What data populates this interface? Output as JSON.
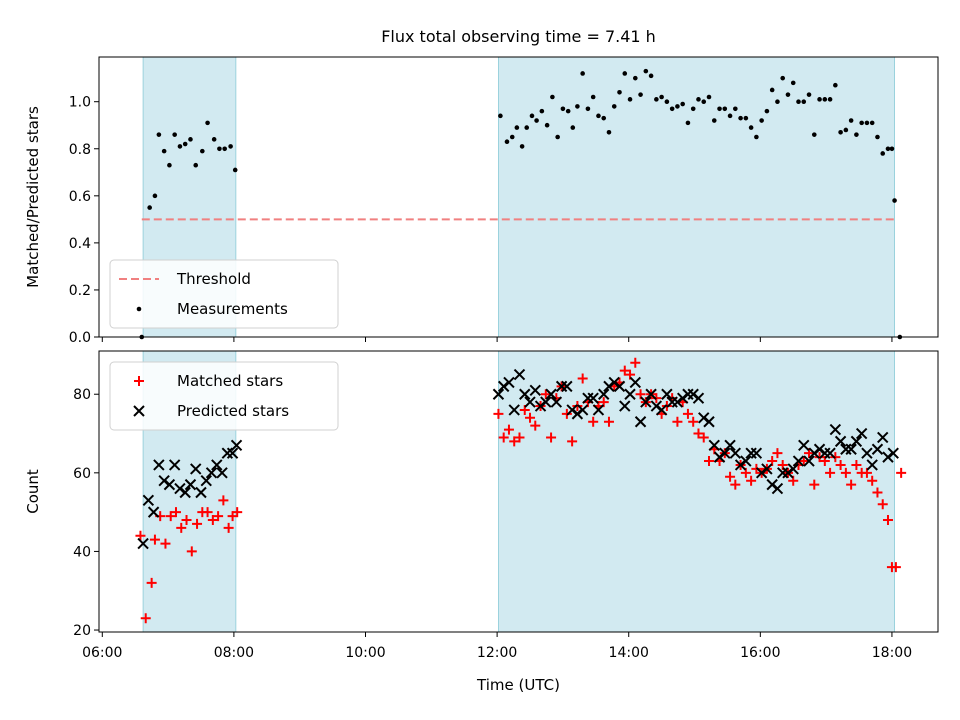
{
  "chart_data": {
    "type": "scatter",
    "title": "Flux total observing time = 7.41 h",
    "xlabel": "Time (UTC)",
    "x_unit": "hours UTC",
    "x_ticks": [
      6,
      8,
      10,
      12,
      14,
      16,
      18
    ],
    "x_tick_labels": [
      "06:00",
      "08:00",
      "10:00",
      "12:00",
      "14:00",
      "16:00",
      "18:00"
    ],
    "xlim": [
      5.95,
      18.7
    ],
    "shaded_intervals": [
      [
        6.62,
        8.03
      ],
      [
        12.02,
        18.04
      ]
    ],
    "shade_color": "#add8e6",
    "panels": [
      {
        "ylabel": "Matched/Predicted stars",
        "ylim": [
          0,
          1.19
        ],
        "y_ticks": [
          0.0,
          0.2,
          0.4,
          0.6,
          0.8,
          1.0
        ],
        "y_tick_labels": [
          "0.0",
          "0.2",
          "0.4",
          "0.6",
          "0.8",
          "1.0"
        ],
        "legend_position": "lower-left",
        "threshold": {
          "name": "Threshold",
          "value": 0.5,
          "x_range": [
            6.6,
            18.05
          ],
          "color": "#f08080",
          "style": "dashed"
        },
        "series": [
          {
            "name": "Measurements",
            "marker": "dot",
            "color": "#000000",
            "x": [
              6.6,
              6.72,
              6.8,
              6.86,
              6.94,
              7.02,
              7.1,
              7.18,
              7.26,
              7.34,
              7.42,
              7.52,
              7.6,
              7.7,
              7.78,
              7.86,
              7.95,
              8.02,
              12.05,
              12.15,
              12.23,
              12.3,
              12.38,
              12.45,
              12.53,
              12.6,
              12.68,
              12.76,
              12.84,
              12.92,
              13.0,
              13.08,
              13.15,
              13.22,
              13.3,
              13.38,
              13.46,
              13.54,
              13.62,
              13.7,
              13.78,
              13.86,
              13.94,
              14.02,
              14.1,
              14.18,
              14.26,
              14.34,
              14.42,
              14.5,
              14.58,
              14.66,
              14.74,
              14.82,
              14.9,
              14.98,
              15.06,
              15.14,
              15.22,
              15.3,
              15.38,
              15.46,
              15.54,
              15.62,
              15.7,
              15.78,
              15.86,
              15.94,
              16.02,
              16.1,
              16.18,
              16.26,
              16.34,
              16.42,
              16.5,
              16.58,
              16.66,
              16.74,
              16.82,
              16.9,
              16.98,
              17.06,
              17.14,
              17.22,
              17.3,
              17.38,
              17.46,
              17.54,
              17.62,
              17.7,
              17.78,
              17.86,
              17.94,
              18.0,
              18.04,
              18.12
            ],
            "y": [
              0.0,
              0.55,
              0.6,
              0.86,
              0.79,
              0.73,
              0.86,
              0.81,
              0.82,
              0.84,
              0.73,
              0.79,
              0.91,
              0.84,
              0.8,
              0.8,
              0.81,
              0.71,
              0.94,
              0.83,
              0.85,
              0.89,
              0.81,
              0.89,
              0.94,
              0.92,
              0.96,
              0.9,
              1.02,
              0.85,
              0.97,
              0.96,
              0.89,
              0.98,
              1.12,
              0.97,
              1.02,
              0.94,
              0.93,
              0.87,
              0.98,
              1.04,
              1.12,
              1.01,
              1.1,
              1.03,
              1.13,
              1.11,
              1.01,
              1.02,
              1.0,
              0.97,
              0.98,
              0.99,
              0.91,
              0.97,
              1.01,
              1.0,
              1.02,
              0.92,
              0.97,
              0.97,
              0.94,
              0.97,
              0.93,
              0.93,
              0.89,
              0.85,
              0.92,
              0.96,
              1.05,
              1.0,
              1.1,
              1.03,
              1.08,
              1.0,
              1.0,
              1.03,
              0.86,
              1.01,
              1.01,
              1.01,
              1.07,
              0.87,
              0.88,
              0.92,
              0.86,
              0.91,
              0.91,
              0.91,
              0.85,
              0.78,
              0.8,
              0.8,
              0.58,
              0.0
            ]
          }
        ]
      },
      {
        "ylabel": "Count",
        "ylim": [
          19.5,
          91
        ],
        "y_ticks": [
          20,
          40,
          60,
          80
        ],
        "y_tick_labels": [
          "20",
          "40",
          "60",
          "80"
        ],
        "legend_position": "upper-left",
        "series": [
          {
            "name": "Matched stars",
            "marker": "plus",
            "color": "#ff0000",
            "x": [
              6.58,
              6.66,
              6.75,
              6.8,
              6.88,
              6.96,
              7.04,
              7.12,
              7.2,
              7.28,
              7.36,
              7.44,
              7.52,
              7.6,
              7.68,
              7.76,
              7.84,
              7.92,
              7.98,
              8.05,
              12.02,
              12.1,
              12.18,
              12.26,
              12.34,
              12.42,
              12.5,
              12.58,
              12.66,
              12.74,
              12.82,
              12.9,
              12.98,
              13.06,
              13.14,
              13.22,
              13.3,
              13.38,
              13.46,
              13.54,
              13.62,
              13.7,
              13.78,
              13.86,
              13.94,
              14.02,
              14.1,
              14.18,
              14.26,
              14.34,
              14.42,
              14.5,
              14.58,
              14.66,
              14.74,
              14.82,
              14.9,
              14.98,
              15.06,
              15.14,
              15.22,
              15.3,
              15.38,
              15.46,
              15.54,
              15.62,
              15.7,
              15.78,
              15.86,
              15.94,
              16.02,
              16.1,
              16.18,
              16.26,
              16.34,
              16.42,
              16.5,
              16.58,
              16.66,
              16.74,
              16.82,
              16.9,
              16.98,
              17.06,
              17.14,
              17.22,
              17.3,
              17.38,
              17.46,
              17.54,
              17.62,
              17.7,
              17.78,
              17.86,
              17.94,
              18.0,
              18.06,
              18.14
            ],
            "y": [
              44,
              23,
              32,
              43,
              49,
              42,
              49,
              50,
              46,
              48,
              40,
              47,
              50,
              50,
              48,
              49,
              53,
              46,
              49,
              50,
              75,
              69,
              71,
              68,
              69,
              76,
              74,
              72,
              77,
              80,
              69,
              79,
              82,
              75,
              68,
              77,
              84,
              78,
              73,
              77,
              78,
              73,
              82,
              83,
              86,
              85,
              88,
              80,
              78,
              80,
              79,
              75,
              77,
              79,
              73,
              78,
              75,
              73,
              70,
              69,
              63,
              66,
              63,
              65,
              59,
              57,
              62,
              60,
              58,
              61,
              60,
              61,
              63,
              65,
              62,
              60,
              58,
              62,
              63,
              65,
              57,
              64,
              63,
              60,
              64,
              62,
              60,
              57,
              62,
              60,
              60,
              58,
              55,
              52,
              48,
              36,
              36,
              60
            ]
          },
          {
            "name": "Predicted stars",
            "marker": "x",
            "color": "#000000",
            "x": [
              6.62,
              6.7,
              6.78,
              6.86,
              6.94,
              7.02,
              7.1,
              7.18,
              7.26,
              7.34,
              7.42,
              7.5,
              7.58,
              7.66,
              7.74,
              7.82,
              7.9,
              7.98,
              8.04,
              12.02,
              12.1,
              12.18,
              12.26,
              12.34,
              12.42,
              12.5,
              12.58,
              12.66,
              12.74,
              12.82,
              12.9,
              12.98,
              13.06,
              13.14,
              13.22,
              13.3,
              13.38,
              13.46,
              13.54,
              13.62,
              13.7,
              13.78,
              13.86,
              13.94,
              14.02,
              14.1,
              14.18,
              14.26,
              14.34,
              14.42,
              14.5,
              14.58,
              14.66,
              14.74,
              14.82,
              14.9,
              14.98,
              15.06,
              15.14,
              15.22,
              15.3,
              15.38,
              15.46,
              15.54,
              15.62,
              15.7,
              15.78,
              15.86,
              15.94,
              16.02,
              16.1,
              16.18,
              16.26,
              16.34,
              16.42,
              16.5,
              16.58,
              16.66,
              16.74,
              16.82,
              16.9,
              16.98,
              17.06,
              17.14,
              17.22,
              17.3,
              17.38,
              17.46,
              17.54,
              17.62,
              17.7,
              17.78,
              17.86,
              17.94,
              18.02
            ],
            "y": [
              42,
              53,
              50,
              62,
              58,
              57,
              62,
              56,
              55,
              57,
              61,
              55,
              58,
              60,
              62,
              60,
              65,
              65,
              67,
              80,
              82,
              83,
              76,
              85,
              80,
              78,
              81,
              77,
              78,
              80,
              78,
              82,
              82,
              76,
              75,
              76,
              79,
              79,
              76,
              80,
              82,
              83,
              82,
              77,
              80,
              83,
              73,
              78,
              80,
              77,
              76,
              80,
              78,
              78,
              79,
              80,
              80,
              79,
              74,
              73,
              67,
              64,
              65,
              67,
              65,
              62,
              63,
              65,
              65,
              60,
              61,
              57,
              56,
              60,
              60,
              61,
              63,
              67,
              63,
              65,
              66,
              65,
              65,
              71,
              68,
              66,
              66,
              68,
              70,
              65,
              62,
              66,
              69,
              64,
              65
            ]
          }
        ]
      }
    ]
  }
}
